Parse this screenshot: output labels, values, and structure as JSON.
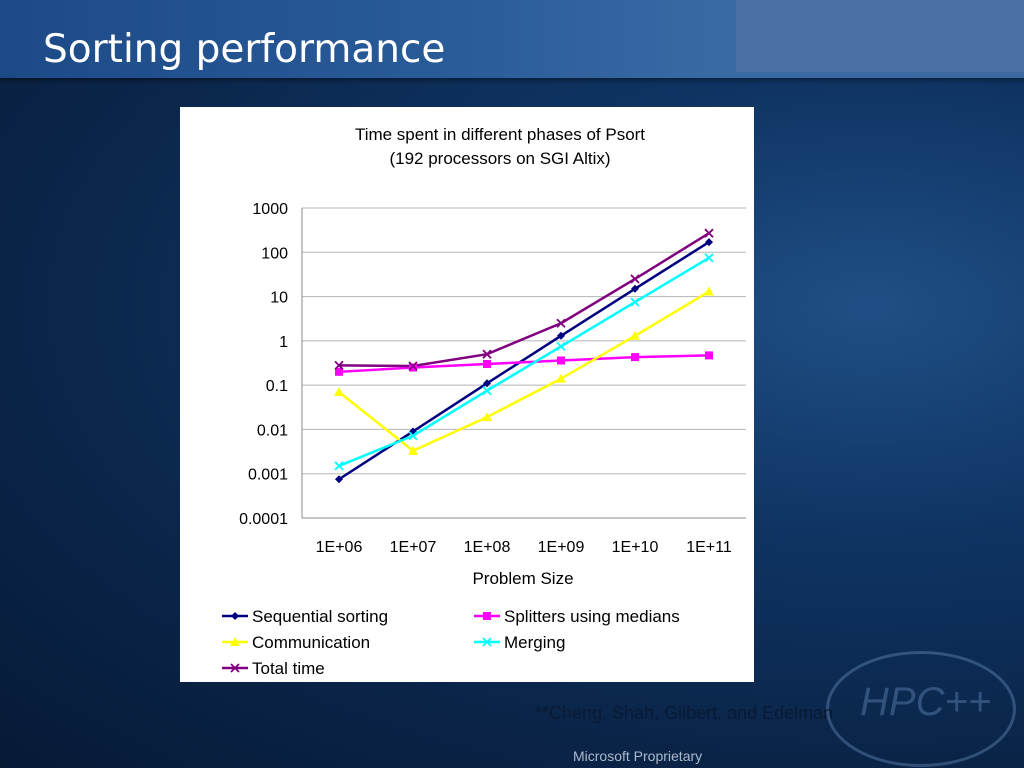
{
  "slide": {
    "title": "Sorting performance",
    "citation": "**Cheng, Shah, Gilbert, and Edelman",
    "footer": "Microsoft Proprietary",
    "logo_text": "HPC++"
  },
  "chart_data": {
    "type": "line",
    "title": "Time spent in different phases of Psort",
    "subtitle": "(192 processors on SGI Altix)",
    "xlabel": "Problem Size",
    "ylabel": "",
    "y_scale": "log",
    "ylim": [
      0.0001,
      1000
    ],
    "y_ticks": [
      "1000",
      "100",
      "10",
      "1",
      "0.1",
      "0.01",
      "0.001",
      "0.0001"
    ],
    "categories": [
      "1E+06",
      "1E+07",
      "1E+08",
      "1E+09",
      "1E+10",
      "1E+11"
    ],
    "grid": true,
    "legend_position": "bottom",
    "series": [
      {
        "name": "Sequential sorting",
        "color": "#000080",
        "marker": "diamond",
        "values": [
          0.00075,
          0.009,
          0.11,
          1.3,
          15,
          170
        ]
      },
      {
        "name": "Splitters using medians",
        "color": "#ff00ff",
        "marker": "square",
        "values": [
          0.2,
          0.25,
          0.3,
          0.36,
          0.43,
          0.47
        ]
      },
      {
        "name": "Communication",
        "color": "#ffff00",
        "marker": "triangle",
        "values": [
          0.07,
          0.0033,
          0.019,
          0.14,
          1.3,
          13
        ]
      },
      {
        "name": "Merging",
        "color": "#00ffff",
        "marker": "x",
        "values": [
          0.0015,
          0.0072,
          0.075,
          0.75,
          7.5,
          75
        ]
      },
      {
        "name": "Total time",
        "color": "#800080",
        "marker": "x",
        "values": [
          0.28,
          0.27,
          0.5,
          2.5,
          25,
          270
        ]
      }
    ]
  }
}
